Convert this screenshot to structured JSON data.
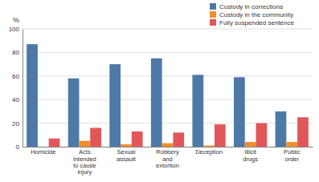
{
  "chart_data": {
    "type": "bar",
    "ylabel": "%",
    "categories": [
      "Homicide",
      "Acts\nintended\nto cause\ninjury",
      "Sexual\nassault",
      "Robbery\nand\nextortion",
      "Deception",
      "Illicit\ndrugs",
      "Public\norder"
    ],
    "series": [
      {
        "name": "Custody in corrections",
        "values": [
          87,
          58,
          70,
          75,
          61,
          59,
          30
        ]
      },
      {
        "name": "Custody in the community",
        "values": [
          0,
          5,
          2,
          3,
          1,
          4,
          4
        ]
      },
      {
        "name": "Fully suspended sentence",
        "values": [
          7,
          16,
          13,
          12,
          19,
          20,
          25
        ]
      }
    ],
    "ylim": [
      0,
      100
    ],
    "yticks": [
      0,
      20,
      40,
      60,
      80,
      100
    ],
    "grid": true,
    "legend": "upper right"
  }
}
